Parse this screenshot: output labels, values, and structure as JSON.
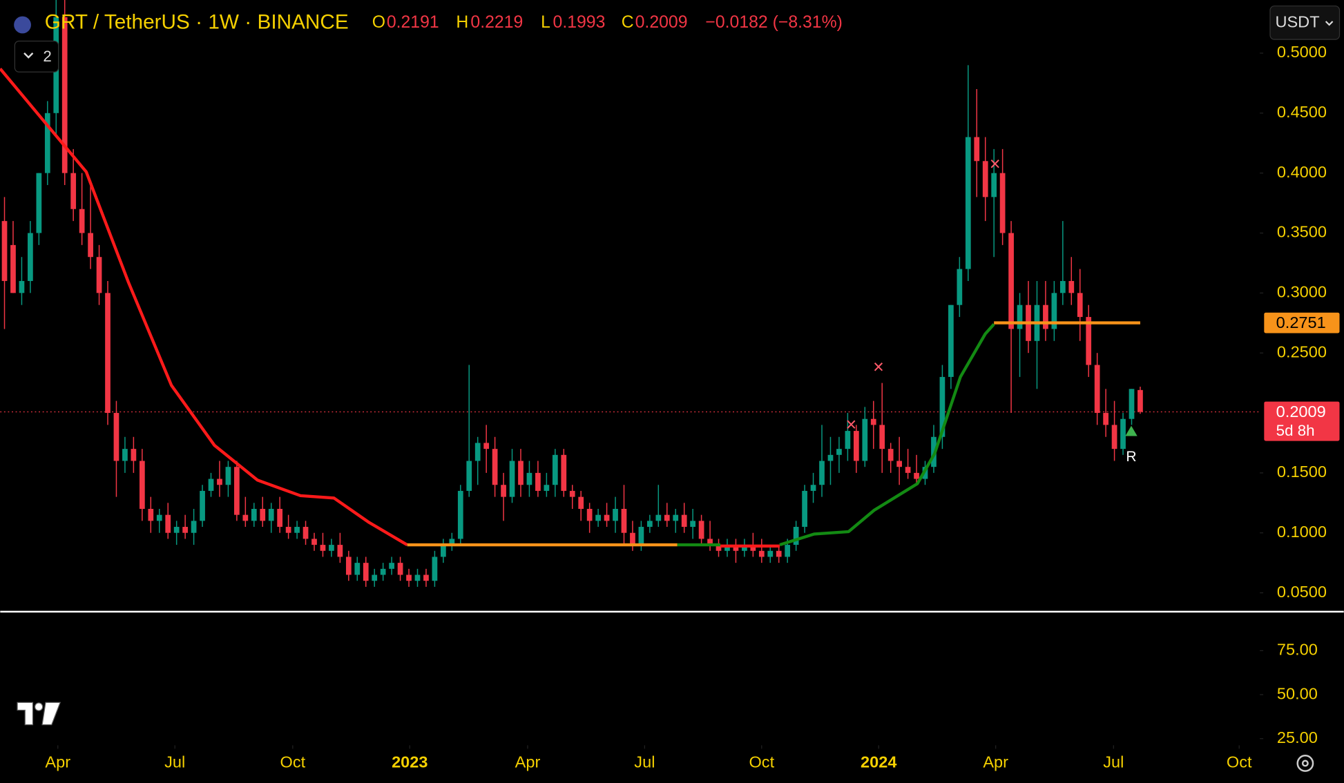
{
  "chart_data": {
    "type": "candlestick",
    "header": {
      "symbol": "GRT / TetherUS · 1W · BINANCE",
      "o_label": "O",
      "o": "0.2191",
      "h_label": "H",
      "h": "0.2219",
      "l_label": "L",
      "l": "0.1993",
      "c_label": "C",
      "c": "0.2009",
      "change": "−0.0182 (−8.31%)"
    },
    "currency": "USDT",
    "panes_button": "2",
    "marker_label": "R",
    "up_color": "#089981",
    "down_color": "#f23645",
    "xlim": [
      -0.5,
      145.9
    ],
    "xticks": [
      {
        "value": 6.2,
        "label": "Apr"
      },
      {
        "value": 19.8,
        "label": "Jul"
      },
      {
        "value": 33.5,
        "label": "Oct"
      },
      {
        "value": 47.1,
        "label": "2023"
      },
      {
        "value": 60.8,
        "label": "Apr"
      },
      {
        "value": 74.4,
        "label": "Jul"
      },
      {
        "value": 88.0,
        "label": "Oct"
      },
      {
        "value": 101.6,
        "label": "2024"
      },
      {
        "value": 115.2,
        "label": "Apr"
      },
      {
        "value": 128.9,
        "label": "Jul"
      },
      {
        "value": 143.5,
        "label": "Oct"
      }
    ],
    "ylim": [
      0.035,
      0.5443
    ],
    "yticks": [
      {
        "value": 0.05,
        "label": "0.0500"
      },
      {
        "value": 0.1,
        "label": "0.1000"
      },
      {
        "value": 0.15,
        "label": "0.1500"
      },
      {
        "value": 0.25,
        "label": "0.2500"
      },
      {
        "value": 0.3,
        "label": "0.3000"
      },
      {
        "value": 0.35,
        "label": "0.3500"
      },
      {
        "value": 0.4,
        "label": "0.4000"
      },
      {
        "value": 0.45,
        "label": "0.4500"
      },
      {
        "value": 0.5,
        "label": "0.5000"
      }
    ],
    "candles": [
      [
        0.36,
        0.38,
        0.27,
        0.31
      ],
      [
        0.34,
        0.36,
        0.3,
        0.3
      ],
      [
        0.3,
        0.33,
        0.29,
        0.31
      ],
      [
        0.31,
        0.36,
        0.3,
        0.35
      ],
      [
        0.35,
        0.4,
        0.34,
        0.4
      ],
      [
        0.4,
        0.46,
        0.39,
        0.45
      ],
      [
        0.45,
        0.55,
        0.43,
        0.53
      ],
      [
        0.53,
        0.55,
        0.39,
        0.4
      ],
      [
        0.4,
        0.42,
        0.36,
        0.37
      ],
      [
        0.37,
        0.4,
        0.34,
        0.35
      ],
      [
        0.35,
        0.39,
        0.32,
        0.33
      ],
      [
        0.33,
        0.34,
        0.29,
        0.3
      ],
      [
        0.3,
        0.31,
        0.19,
        0.2
      ],
      [
        0.2,
        0.21,
        0.13,
        0.16
      ],
      [
        0.16,
        0.18,
        0.15,
        0.17
      ],
      [
        0.17,
        0.18,
        0.15,
        0.16
      ],
      [
        0.16,
        0.17,
        0.11,
        0.12
      ],
      [
        0.12,
        0.13,
        0.1,
        0.11
      ],
      [
        0.11,
        0.12,
        0.1,
        0.115
      ],
      [
        0.115,
        0.125,
        0.095,
        0.1
      ],
      [
        0.1,
        0.11,
        0.09,
        0.105
      ],
      [
        0.105,
        0.115,
        0.095,
        0.1
      ],
      [
        0.1,
        0.12,
        0.09,
        0.11
      ],
      [
        0.11,
        0.14,
        0.105,
        0.135
      ],
      [
        0.135,
        0.15,
        0.13,
        0.145
      ],
      [
        0.145,
        0.16,
        0.13,
        0.14
      ],
      [
        0.14,
        0.16,
        0.13,
        0.155
      ],
      [
        0.155,
        0.16,
        0.11,
        0.115
      ],
      [
        0.115,
        0.13,
        0.105,
        0.11
      ],
      [
        0.11,
        0.125,
        0.105,
        0.12
      ],
      [
        0.12,
        0.13,
        0.105,
        0.11
      ],
      [
        0.11,
        0.125,
        0.1,
        0.12
      ],
      [
        0.12,
        0.13,
        0.1,
        0.105
      ],
      [
        0.105,
        0.115,
        0.095,
        0.1
      ],
      [
        0.1,
        0.11,
        0.095,
        0.105
      ],
      [
        0.105,
        0.11,
        0.09,
        0.095
      ],
      [
        0.095,
        0.1,
        0.085,
        0.09
      ],
      [
        0.09,
        0.1,
        0.08,
        0.085
      ],
      [
        0.085,
        0.095,
        0.08,
        0.09
      ],
      [
        0.09,
        0.1,
        0.075,
        0.08
      ],
      [
        0.08,
        0.085,
        0.06,
        0.065
      ],
      [
        0.065,
        0.08,
        0.06,
        0.075
      ],
      [
        0.075,
        0.08,
        0.055,
        0.06
      ],
      [
        0.06,
        0.07,
        0.055,
        0.065
      ],
      [
        0.065,
        0.075,
        0.06,
        0.07
      ],
      [
        0.07,
        0.08,
        0.065,
        0.075
      ],
      [
        0.075,
        0.08,
        0.06,
        0.065
      ],
      [
        0.065,
        0.07,
        0.055,
        0.06
      ],
      [
        0.06,
        0.07,
        0.055,
        0.065
      ],
      [
        0.065,
        0.07,
        0.055,
        0.06
      ],
      [
        0.06,
        0.085,
        0.055,
        0.08
      ],
      [
        0.08,
        0.095,
        0.075,
        0.09
      ],
      [
        0.09,
        0.1,
        0.085,
        0.095
      ],
      [
        0.095,
        0.14,
        0.09,
        0.135
      ],
      [
        0.135,
        0.24,
        0.13,
        0.16
      ],
      [
        0.16,
        0.18,
        0.14,
        0.175
      ],
      [
        0.175,
        0.19,
        0.15,
        0.17
      ],
      [
        0.17,
        0.18,
        0.13,
        0.14
      ],
      [
        0.14,
        0.15,
        0.11,
        0.13
      ],
      [
        0.13,
        0.17,
        0.125,
        0.16
      ],
      [
        0.16,
        0.17,
        0.13,
        0.14
      ],
      [
        0.14,
        0.16,
        0.13,
        0.15
      ],
      [
        0.15,
        0.16,
        0.13,
        0.135
      ],
      [
        0.135,
        0.15,
        0.13,
        0.14
      ],
      [
        0.14,
        0.17,
        0.13,
        0.165
      ],
      [
        0.165,
        0.17,
        0.13,
        0.135
      ],
      [
        0.135,
        0.14,
        0.12,
        0.13
      ],
      [
        0.13,
        0.135,
        0.11,
        0.12
      ],
      [
        0.12,
        0.125,
        0.1,
        0.11
      ],
      [
        0.11,
        0.12,
        0.105,
        0.115
      ],
      [
        0.115,
        0.125,
        0.105,
        0.11
      ],
      [
        0.11,
        0.13,
        0.1,
        0.12
      ],
      [
        0.12,
        0.14,
        0.09,
        0.1
      ],
      [
        0.1,
        0.11,
        0.085,
        0.09
      ],
      [
        0.09,
        0.11,
        0.085,
        0.105
      ],
      [
        0.105,
        0.115,
        0.1,
        0.11
      ],
      [
        0.11,
        0.14,
        0.105,
        0.115
      ],
      [
        0.115,
        0.125,
        0.105,
        0.11
      ],
      [
        0.11,
        0.12,
        0.1,
        0.115
      ],
      [
        0.115,
        0.125,
        0.1,
        0.105
      ],
      [
        0.105,
        0.12,
        0.095,
        0.11
      ],
      [
        0.11,
        0.115,
        0.09,
        0.095
      ],
      [
        0.095,
        0.11,
        0.085,
        0.09
      ],
      [
        0.09,
        0.095,
        0.08,
        0.085
      ],
      [
        0.085,
        0.095,
        0.08,
        0.09
      ],
      [
        0.09,
        0.095,
        0.075,
        0.085
      ],
      [
        0.085,
        0.095,
        0.08,
        0.09
      ],
      [
        0.09,
        0.1,
        0.08,
        0.085
      ],
      [
        0.085,
        0.095,
        0.075,
        0.08
      ],
      [
        0.08,
        0.09,
        0.075,
        0.085
      ],
      [
        0.085,
        0.09,
        0.075,
        0.08
      ],
      [
        0.08,
        0.095,
        0.075,
        0.09
      ],
      [
        0.09,
        0.11,
        0.085,
        0.105
      ],
      [
        0.105,
        0.14,
        0.1,
        0.135
      ],
      [
        0.135,
        0.15,
        0.125,
        0.14
      ],
      [
        0.14,
        0.19,
        0.13,
        0.16
      ],
      [
        0.16,
        0.18,
        0.14,
        0.165
      ],
      [
        0.165,
        0.18,
        0.15,
        0.17
      ],
      [
        0.17,
        0.2,
        0.16,
        0.185
      ],
      [
        0.185,
        0.19,
        0.15,
        0.16
      ],
      [
        0.16,
        0.205,
        0.155,
        0.195
      ],
      [
        0.195,
        0.21,
        0.17,
        0.19
      ],
      [
        0.19,
        0.225,
        0.15,
        0.17
      ],
      [
        0.17,
        0.175,
        0.15,
        0.16
      ],
      [
        0.16,
        0.18,
        0.14,
        0.155
      ],
      [
        0.155,
        0.17,
        0.145,
        0.15
      ],
      [
        0.15,
        0.165,
        0.14,
        0.145
      ],
      [
        0.145,
        0.16,
        0.14,
        0.155
      ],
      [
        0.155,
        0.19,
        0.15,
        0.18
      ],
      [
        0.18,
        0.24,
        0.17,
        0.23
      ],
      [
        0.23,
        0.29,
        0.22,
        0.29
      ],
      [
        0.29,
        0.33,
        0.28,
        0.32
      ],
      [
        0.32,
        0.49,
        0.31,
        0.43
      ],
      [
        0.43,
        0.47,
        0.38,
        0.41
      ],
      [
        0.41,
        0.43,
        0.36,
        0.38
      ],
      [
        0.38,
        0.42,
        0.33,
        0.4
      ],
      [
        0.4,
        0.42,
        0.34,
        0.35
      ],
      [
        0.35,
        0.36,
        0.2,
        0.27
      ],
      [
        0.27,
        0.3,
        0.23,
        0.29
      ],
      [
        0.29,
        0.31,
        0.25,
        0.26
      ],
      [
        0.26,
        0.31,
        0.22,
        0.29
      ],
      [
        0.29,
        0.31,
        0.26,
        0.27
      ],
      [
        0.27,
        0.31,
        0.26,
        0.3
      ],
      [
        0.3,
        0.36,
        0.29,
        0.31
      ],
      [
        0.31,
        0.33,
        0.29,
        0.3
      ],
      [
        0.3,
        0.32,
        0.26,
        0.28
      ],
      [
        0.28,
        0.29,
        0.23,
        0.24
      ],
      [
        0.24,
        0.25,
        0.19,
        0.2
      ],
      [
        0.2,
        0.22,
        0.18,
        0.19
      ],
      [
        0.19,
        0.21,
        0.16,
        0.17
      ],
      [
        0.17,
        0.2,
        0.165,
        0.195
      ],
      [
        0.195,
        0.22,
        0.19,
        0.22
      ],
      [
        0.2191,
        0.2219,
        0.1993,
        0.2009
      ]
    ],
    "lines": [
      {
        "color": "#ff1a1a",
        "x": [
          -0.5,
          4.5,
          9.5,
          14.4,
          19.4,
          24.4,
          29.4,
          34.4,
          38.3,
          42.3,
          46.8
        ],
        "values": [
          0.487,
          0.444,
          0.401,
          0.309,
          0.223,
          0.173,
          0.144,
          0.131,
          0.129,
          0.109,
          0.09
        ]
      },
      {
        "color": "#f7931a",
        "x": [
          46.8,
          78.2
        ],
        "values": [
          0.09,
          0.09
        ]
      },
      {
        "color": "#138a13",
        "x": [
          78.2,
          83.2
        ],
        "values": [
          0.09,
          0.09
        ]
      },
      {
        "color": "#ff1a1a",
        "x": [
          83.2,
          90.1
        ],
        "values": [
          0.089,
          0.089
        ]
      },
      {
        "color": "#138a13",
        "x": [
          90.1,
          94.1,
          98.1,
          101.1,
          106.1,
          108.1,
          111.1,
          114.0,
          115.0
        ],
        "values": [
          0.09,
          0.099,
          0.101,
          0.119,
          0.141,
          0.166,
          0.23,
          0.266,
          0.274
        ]
      },
      {
        "color": "#f7931a",
        "x": [
          115.0,
          132
        ],
        "values": [
          0.2751,
          0.2751
        ]
      }
    ],
    "level": {
      "value": 0.2751,
      "color": "#f7931a"
    },
    "last_price": {
      "value": 0.2009,
      "countdown": "5d 8h",
      "color": "#f23645"
    },
    "lower_pane": {
      "ylim": [
        21.2,
        96.2
      ],
      "yticks": [
        {
          "value": 25,
          "label": "25.00"
        },
        {
          "value": 50,
          "label": "50.00"
        },
        {
          "value": 75,
          "label": "75.00"
        }
      ]
    }
  }
}
